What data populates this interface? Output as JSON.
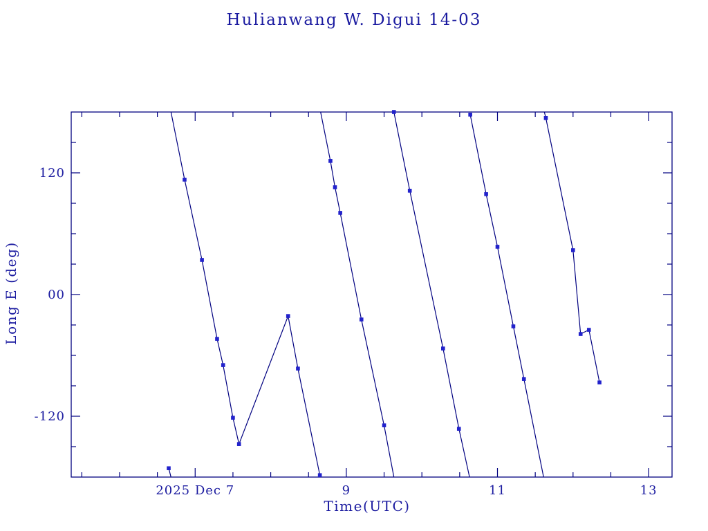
{
  "title": "Hulianwang W. Digui 14-03",
  "colors": {
    "background": "#ffffff",
    "axis_line": "#000080",
    "data_line": "#000080",
    "marker": "#2222cc",
    "text": "#1b1ba0"
  },
  "chart_data": {
    "type": "line",
    "title": "Hulianwang W. Digui 14-03",
    "xlabel": "Time(UTC)",
    "ylabel": "Long E (deg)",
    "marker_style": "filled-square",
    "grid": "off",
    "x_axis": {
      "unit": "day of 2025 Dec (UTC)",
      "min": 5.36,
      "max": 13.31,
      "major_ticks": [
        7,
        9,
        11,
        13
      ],
      "major_tick_labels": [
        "2025 Dec 7",
        "9",
        "11",
        "13"
      ],
      "minor_tick_interval": 0.5
    },
    "y_axis": {
      "unit": "degrees east longitude",
      "min": -180,
      "max": 180,
      "major_ticks": [
        120,
        0,
        -120
      ],
      "major_tick_labels": [
        "120",
        "00",
        "-120"
      ],
      "minor_tick_interval": 30
    },
    "series_note": "each point is [day, longitude_deg, has_marker]; has_marker 0 = edge wrap vertex at +/-180",
    "series": [
      {
        "name": "track-1",
        "points": [
          [
            6.65,
            -171.3,
            1
          ],
          [
            6.68,
            -180,
            0
          ]
        ]
      },
      {
        "name": "track-2",
        "points": [
          [
            6.68,
            180,
            0
          ],
          [
            6.86,
            113.3,
            1
          ],
          [
            7.09,
            34.1,
            1
          ],
          [
            7.29,
            -43.7,
            1
          ],
          [
            7.37,
            -69.6,
            1
          ],
          [
            7.5,
            -121.5,
            1
          ],
          [
            7.58,
            -147.4,
            1
          ],
          [
            8.23,
            -21.2,
            1
          ],
          [
            8.36,
            -73.0,
            1
          ],
          [
            8.65,
            -178.1,
            1
          ],
          [
            8.66,
            -180,
            0
          ]
        ]
      },
      {
        "name": "track-3",
        "points": [
          [
            8.66,
            180,
            0
          ],
          [
            8.79,
            131.7,
            1
          ],
          [
            8.85,
            105.8,
            1
          ],
          [
            8.92,
            80.5,
            1
          ],
          [
            9.2,
            -24.6,
            1
          ],
          [
            9.5,
            -129.0,
            1
          ],
          [
            9.63,
            -180,
            0
          ]
        ]
      },
      {
        "name": "track-4",
        "points": [
          [
            9.63,
            180,
            1
          ],
          [
            9.84,
            102.4,
            1
          ],
          [
            10.28,
            -53.2,
            1
          ],
          [
            10.49,
            -132.4,
            1
          ],
          [
            10.63,
            -180,
            0
          ]
        ]
      },
      {
        "name": "track-5",
        "points": [
          [
            10.64,
            177.4,
            1
          ],
          [
            10.85,
            99.0,
            1
          ],
          [
            11.0,
            47.1,
            1
          ],
          [
            11.21,
            -31.4,
            1
          ],
          [
            11.35,
            -83.3,
            1
          ],
          [
            11.61,
            -180,
            0
          ]
        ]
      },
      {
        "name": "track-6",
        "points": [
          [
            11.62,
            180,
            0
          ],
          [
            11.64,
            174.0,
            1
          ],
          [
            12.0,
            43.7,
            1
          ],
          [
            12.1,
            -38.9,
            1
          ],
          [
            12.21,
            -34.8,
            1
          ],
          [
            12.35,
            -86.7,
            1
          ]
        ]
      }
    ]
  }
}
